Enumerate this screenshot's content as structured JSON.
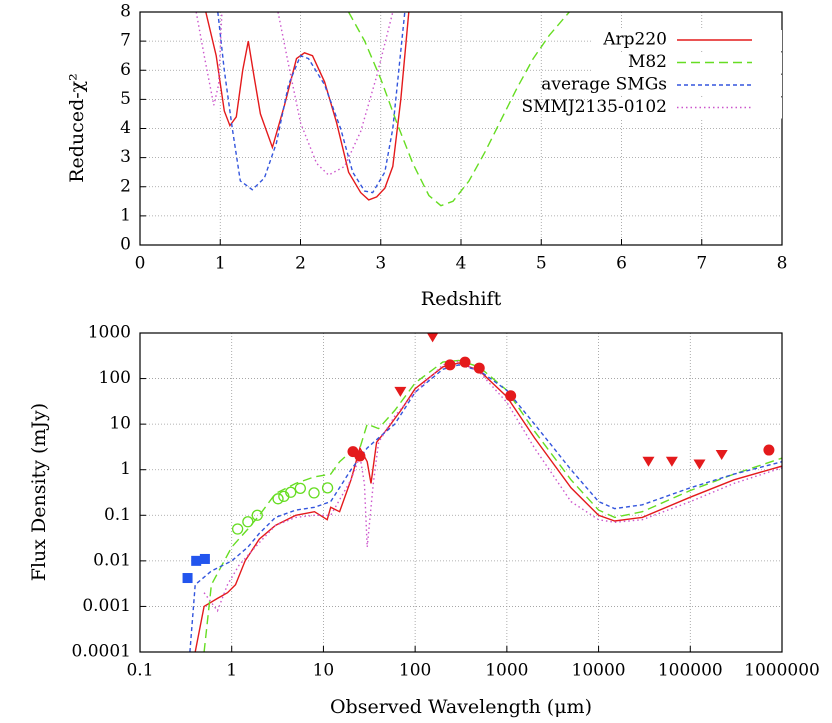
{
  "chart_data": [
    {
      "type": "line",
      "xlabel": "Redshift",
      "ylabel": "Reduced-χ²",
      "xlim": [
        0,
        8
      ],
      "ylim": [
        0,
        8
      ],
      "xticks": [
        0,
        1,
        2,
        3,
        4,
        5,
        6,
        7,
        8
      ],
      "yticks": [
        0,
        1,
        2,
        3,
        4,
        5,
        6,
        7,
        8
      ],
      "grid": true,
      "legend": "upper right",
      "series": [
        {
          "name": "Arp220",
          "color": "#e41a1c",
          "dash": "solid",
          "x": [
            0.82,
            0.95,
            1.05,
            1.12,
            1.2,
            1.28,
            1.35,
            1.42,
            1.5,
            1.65,
            1.8,
            1.95,
            2.05,
            2.15,
            2.3,
            2.45,
            2.6,
            2.75,
            2.85,
            2.95,
            3.05,
            3.15,
            3.25,
            3.35
          ],
          "values": [
            8,
            6.5,
            4.6,
            4.1,
            4.4,
            6.0,
            7.0,
            5.8,
            4.5,
            3.35,
            4.8,
            6.4,
            6.6,
            6.5,
            5.6,
            4.2,
            2.5,
            1.8,
            1.55,
            1.65,
            1.95,
            2.7,
            5.0,
            8
          ]
        },
        {
          "name": "M82",
          "color": "#66dd22",
          "dash": "dashed",
          "x": [
            2.6,
            2.8,
            3.0,
            3.2,
            3.4,
            3.6,
            3.75,
            3.9,
            4.1,
            4.3,
            4.5,
            4.7,
            4.9,
            5.1,
            5.35
          ],
          "values": [
            8,
            7,
            5.7,
            4.2,
            2.8,
            1.7,
            1.35,
            1.5,
            2.2,
            3.2,
            4.3,
            5.4,
            6.4,
            7.2,
            8
          ]
        },
        {
          "name": "average SMGs",
          "color": "#3355dd",
          "dash": "short",
          "x": [
            0.97,
            1.05,
            1.15,
            1.25,
            1.4,
            1.55,
            1.7,
            1.85,
            2.0,
            2.1,
            2.3,
            2.5,
            2.65,
            2.8,
            2.9,
            3.05,
            3.15,
            3.3
          ],
          "values": [
            8,
            6.0,
            4.0,
            2.2,
            1.9,
            2.3,
            3.5,
            5.5,
            6.5,
            6.4,
            5.5,
            4.0,
            2.5,
            1.85,
            1.8,
            2.5,
            4.0,
            8
          ]
        },
        {
          "name": "SMMJ2135-0102",
          "color": "#cc55cc",
          "dash": "dotted",
          "x": [
            0.7,
            0.8,
            0.92,
            0.98,
            1.02,
            1.5,
            1.72,
            1.85,
            2.0,
            2.2,
            2.35,
            2.55,
            2.75,
            2.95,
            3.15
          ],
          "values": [
            8,
            6.5,
            4.8,
            5.5,
            8,
            null,
            8,
            6.2,
            4.2,
            2.8,
            2.4,
            2.7,
            3.9,
            5.8,
            8
          ]
        }
      ]
    },
    {
      "type": "line",
      "xlabel": "Observed Wavelength (μm)",
      "ylabel": "Flux Density (mJy)",
      "xscale": "log",
      "yscale": "log",
      "xlim": [
        0.1,
        1000000
      ],
      "ylim": [
        0.0001,
        1000
      ],
      "xticks": [
        0.1,
        1,
        10,
        100,
        1000,
        10000,
        100000,
        1000000
      ],
      "yticks": [
        0.0001,
        0.001,
        0.01,
        0.1,
        1,
        10,
        100,
        1000
      ],
      "grid": true,
      "series": [
        {
          "color": "#e41a1c",
          "dash": "solid",
          "x": [
            0.4,
            0.5,
            0.7,
            0.9,
            1.1,
            1.4,
            2,
            3,
            5,
            8,
            11,
            12,
            15,
            20,
            25,
            30,
            33,
            38,
            50,
            70,
            100,
            200,
            300,
            500,
            1000,
            2000,
            5000,
            10000,
            15000,
            30000,
            100000,
            300000,
            1000000
          ],
          "values": [
            0.0001,
            0.001,
            0.0015,
            0.002,
            0.003,
            0.01,
            0.03,
            0.06,
            0.1,
            0.12,
            0.08,
            0.15,
            0.12,
            0.6,
            3,
            1.5,
            0.5,
            4,
            8,
            20,
            60,
            180,
            220,
            150,
            40,
            5,
            0.4,
            0.1,
            0.075,
            0.09,
            0.25,
            0.6,
            1.2
          ]
        },
        {
          "color": "#66dd22",
          "dash": "dashed",
          "x": [
            0.5,
            0.6,
            1,
            1.5,
            2,
            3,
            5,
            8,
            12,
            15,
            20,
            25,
            30,
            40,
            60,
            100,
            200,
            300,
            500,
            1000,
            2000,
            5000,
            10000,
            15000,
            30000,
            100000,
            300000,
            1000000
          ],
          "values": [
            0.0001,
            0.003,
            0.02,
            0.05,
            0.1,
            0.3,
            0.5,
            0.7,
            0.8,
            1.5,
            2.5,
            3,
            10,
            8,
            20,
            80,
            230,
            250,
            180,
            55,
            7,
            0.6,
            0.13,
            0.09,
            0.12,
            0.35,
            0.8,
            1.8
          ]
        },
        {
          "color": "#3355dd",
          "dash": "short",
          "x": [
            0.35,
            0.4,
            0.6,
            1,
            1.5,
            2,
            3,
            5,
            8,
            12,
            20,
            30,
            40,
            60,
            100,
            200,
            300,
            500,
            1000,
            2000,
            5000,
            10000,
            15000,
            30000,
            100000,
            300000,
            1000000
          ],
          "values": [
            0.0001,
            0.003,
            0.006,
            0.01,
            0.02,
            0.04,
            0.09,
            0.13,
            0.15,
            0.2,
            1,
            3,
            5,
            10,
            50,
            160,
            200,
            150,
            55,
            10,
            1,
            0.2,
            0.14,
            0.17,
            0.4,
            0.8,
            1.5
          ]
        },
        {
          "color": "#cc55cc",
          "dash": "dotted",
          "x": [
            0.5,
            0.7,
            0.9,
            1.2,
            2,
            3,
            5,
            8,
            12,
            20,
            25,
            28,
            30,
            35,
            40,
            60,
            100,
            200,
            300,
            500,
            1000,
            2000,
            5000,
            10000,
            15000,
            30000,
            100000,
            300000,
            1000000
          ],
          "values": [
            0.002,
            0.0008,
            0.003,
            0.008,
            0.025,
            0.06,
            0.09,
            0.1,
            0.1,
            0.6,
            2,
            0.5,
            0.02,
            0.5,
            4,
            15,
            50,
            200,
            240,
            140,
            30,
            3,
            0.2,
            0.08,
            0.07,
            0.08,
            0.2,
            0.5,
            1.1
          ]
        }
      ],
      "points": [
        {
          "marker": "square",
          "color": "#2255ee",
          "x": [
            0.33,
            0.41,
            0.51
          ],
          "values": [
            0.0042,
            0.01,
            0.011
          ]
        },
        {
          "marker": "open-circle",
          "color": "#66dd22",
          "x": [
            1.16,
            1.5,
            1.9,
            3.2,
            3.7,
            4.4,
            5.6,
            7.9,
            11.1
          ],
          "values": [
            0.05,
            0.072,
            0.1,
            0.23,
            0.26,
            0.32,
            0.39,
            0.31,
            0.4
          ]
        },
        {
          "marker": "circle",
          "color": "#e41a1c",
          "x": [
            21,
            25,
            240,
            350,
            500,
            1100,
            720000
          ],
          "values": [
            2.5,
            2,
            200,
            230,
            170,
            42,
            2.7
          ]
        },
        {
          "marker": "triangle-down",
          "color": "#e41a1c",
          "x": [
            155,
            69,
            35000,
            63000,
            126000,
            220000
          ],
          "values": [
            800,
            51,
            1.5,
            1.5,
            1.3,
            2.1
          ]
        }
      ]
    }
  ]
}
